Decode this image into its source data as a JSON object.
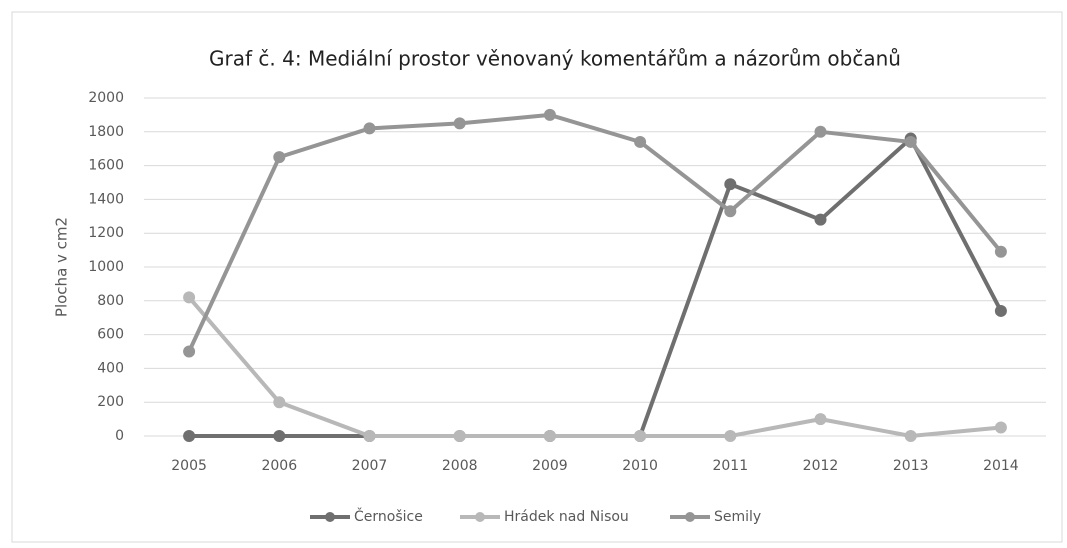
{
  "chart_data": {
    "type": "line",
    "title": "Graf č. 4: Mediální prostor věnovaný komentářům a názorům občanů",
    "ylabel": "Plocha v cm2",
    "categories": [
      "2005",
      "2006",
      "2007",
      "2008",
      "2009",
      "2010",
      "2011",
      "2012",
      "2013",
      "2014"
    ],
    "series": [
      {
        "name": "Černošice",
        "color": "#6f6f6f",
        "values": [
          0,
          0,
          0,
          0,
          0,
          0,
          1490,
          1280,
          1760,
          740
        ]
      },
      {
        "name": "Hrádek nad Nisou",
        "color": "#b8b8b8",
        "values": [
          820,
          200,
          0,
          0,
          0,
          0,
          0,
          100,
          0,
          50
        ]
      },
      {
        "name": "Semily",
        "color": "#959595",
        "values": [
          500,
          1650,
          1820,
          1850,
          1900,
          1740,
          1330,
          1800,
          1740,
          1090
        ]
      }
    ],
    "ylim": [
      0,
      2000
    ],
    "yticks": [
      0,
      200,
      400,
      600,
      800,
      1000,
      1200,
      1400,
      1600,
      1800,
      2000
    ],
    "grid": true,
    "legend": "bottom"
  }
}
